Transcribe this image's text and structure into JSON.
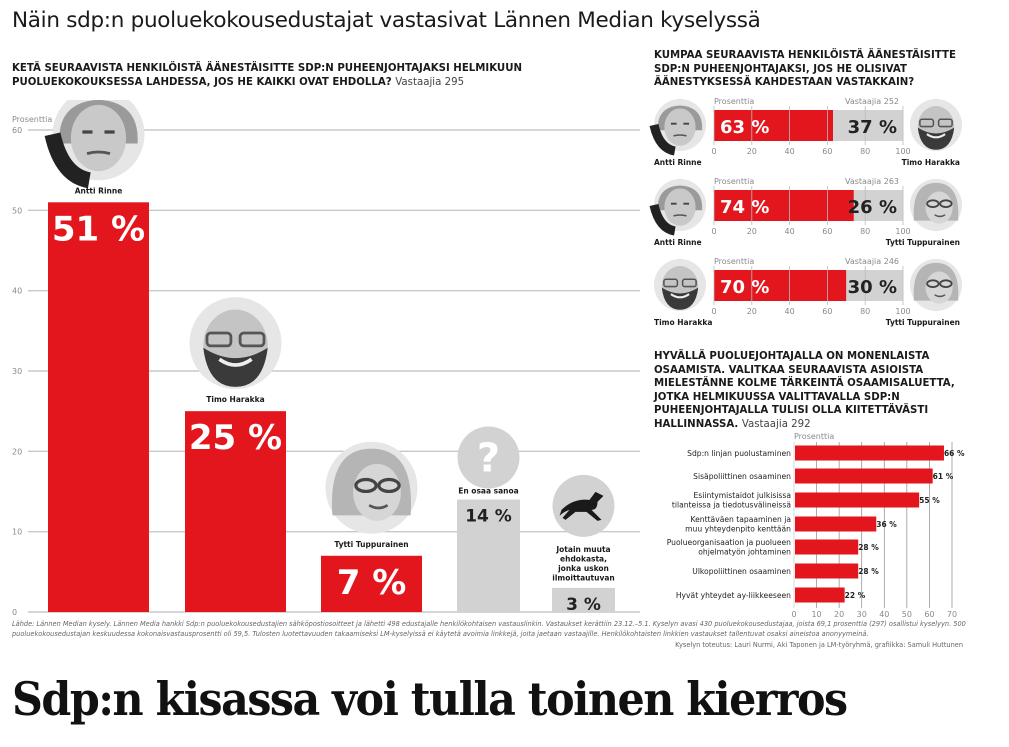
{
  "title": "Näin sdp:n puoluekokousedustajat vastasivat Lännen Median kyselyssä",
  "headline": "Sdp:n kisassa voi tulla toinen kierros",
  "colors": {
    "accent": "#e3161e",
    "neutral": "#d2d2d2",
    "grid": "#c8c8c8",
    "text": "#1a1a1a"
  },
  "question1": {
    "text": "KETÄ SEURAAVISTA HENKILÖISTÄ ÄÄNESTÄISITTE SDP:N PUHEENJOHTAJAKSI HELMIKUUN PUOLUEKOKOUKSESSA LAHDESSA, JOS HE KAIKKI OVAT EHDOLLA?",
    "respondents": "Vastaajia 295"
  },
  "question2": {
    "text": "KUMPAA SEURAAVISTA HENKILÖISTÄ ÄÄNESTÄISITTE SDP:N PUHEENJOHTAJAKSI, JOS HE OLISIVAT ÄÄNESTYKSESSÄ KAHDESTAAN VASTAKKAIN?"
  },
  "question3": {
    "text": "HYVÄLLÄ PUOLUEJOHTAJALLA ON MONENLAISTA OSAAMISTA. VALITKAA SEURAAVISTA ASIOISTA MIELESTÄNNE KOLME TÄRKEINTÄ OSAAMISALUETTA, JOTKA HELMIKUUSSA VALITTAVALLA SDP:N PUHEENJOHTAJALLA TULISI OLLA KIITETTÄVÄSTI HALLINNASSA.",
    "respondents": "Vastaajia 292"
  },
  "source": "Lähde: Lännen Median kysely. Lännen Media hankki Sdp:n puoluekokousedustajien sähköpostiosoitteet ja lähetti 498 edustajalle henkilökohtaisen vastauslinkin. Vastaukset kerättiin 23.12.–5.1. Kyselyn avasi 430 puoluekokousedustajaa, joista 69,1 prosenttia (297) osallistui kyselyyn. 500 puoluekokousedustajan keskuudessa kokonaisvastausprosentti oli 59,5. Tulosten luotettavuuden takaamiseksi LM-kyselyissä ei käytetä avoimia linkkejä, joita jaetaan vastaajille. Henkilökohtaisten linkkien vastaukset tallentuvat osaksi aineistoa anonyymeinä.",
  "credits": "Kyselyn toteutus: Lauri Nurmi, Aki Taponen ja LM-työryhmä, grafiikka: Samuli Huttunen",
  "chart_data": [
    {
      "type": "bar",
      "title": "Ketä seuraavista henkilöistä äänestäisitte SDP:n puheenjohtajaksi",
      "ylabel": "Prosenttia",
      "xlabel": "",
      "ylim": [
        0,
        60
      ],
      "yticks": [
        0,
        10,
        20,
        30,
        40,
        50,
        60
      ],
      "grid": true,
      "categories": [
        "Antti Rinne",
        "Timo Harakka",
        "Tytti Tuppurainen",
        "En osaa sanoa",
        "Jotain muuta ehdokasta, jonka uskon ilmoittautuvan"
      ],
      "values": [
        51,
        25,
        7,
        14,
        3
      ],
      "labels": [
        "51 %",
        "25 %",
        "7 %",
        "14 %",
        "3 %"
      ],
      "highlight": [
        true,
        true,
        true,
        false,
        false
      ],
      "icons": [
        "photo-antti-rinne",
        "photo-timo-harakka",
        "photo-tytti-tuppurainen",
        "question-mark-icon",
        "horse-icon"
      ]
    },
    {
      "type": "bar",
      "stacked": true,
      "orientation": "horizontal",
      "title": "Antti Rinne vs Timo Harakka",
      "xlabel": "Prosenttia",
      "respondents": "Vastaajia 252",
      "xlim": [
        0,
        100
      ],
      "xticks": [
        0,
        20,
        40,
        60,
        80,
        100
      ],
      "series": [
        {
          "name": "Antti Rinne",
          "values": [
            63
          ],
          "label": "63 %"
        },
        {
          "name": "Timo Harakka",
          "values": [
            37
          ],
          "label": "37 %"
        }
      ]
    },
    {
      "type": "bar",
      "stacked": true,
      "orientation": "horizontal",
      "title": "Antti Rinne vs Tytti Tuppurainen",
      "xlabel": "Prosenttia",
      "respondents": "Vastaajia 263",
      "xlim": [
        0,
        100
      ],
      "xticks": [
        0,
        20,
        40,
        60,
        80,
        100
      ],
      "series": [
        {
          "name": "Antti Rinne",
          "values": [
            74
          ],
          "label": "74 %"
        },
        {
          "name": "Tytti Tuppurainen",
          "values": [
            26
          ],
          "label": "26 %"
        }
      ]
    },
    {
      "type": "bar",
      "stacked": true,
      "orientation": "horizontal",
      "title": "Timo Harakka vs Tytti Tuppurainen",
      "xlabel": "Prosenttia",
      "respondents": "Vastaajia 246",
      "xlim": [
        0,
        100
      ],
      "xticks": [
        0,
        20,
        40,
        60,
        80,
        100
      ],
      "series": [
        {
          "name": "Timo Harakka",
          "values": [
            70
          ],
          "label": "70 %"
        },
        {
          "name": "Tytti Tuppurainen",
          "values": [
            30
          ],
          "label": "30 %"
        }
      ]
    },
    {
      "type": "bar",
      "orientation": "horizontal",
      "title": "Puoluejohtajan tärkeimmät osaamisalueet",
      "xlabel": "Prosenttia",
      "xlim": [
        0,
        70
      ],
      "xticks": [
        0,
        10,
        20,
        30,
        40,
        50,
        60,
        70
      ],
      "grid": true,
      "categories": [
        [
          "Sdp:n linjan puolustaminen"
        ],
        [
          "Sisäpoliittinen osaaminen"
        ],
        [
          "Esiintymistaidot julkisissa",
          "tilanteissa ja tiedotusvälineissä"
        ],
        [
          "Kenttäväen tapaaminen ja",
          "muu yhteydenpito kenttään"
        ],
        [
          "Puolueorganisaation ja puolueen",
          "ohjelmatyön johtaminen"
        ],
        [
          "Ulkopoliittinen osaaminen"
        ],
        [
          "Hyvät yhteydet ay-liikkeeseen"
        ]
      ],
      "values": [
        66,
        61,
        55,
        36,
        28,
        28,
        22
      ],
      "labels": [
        "66 %",
        "61 %",
        "55 %",
        "36 %",
        "28 %",
        "28 %",
        "22 %"
      ]
    }
  ]
}
